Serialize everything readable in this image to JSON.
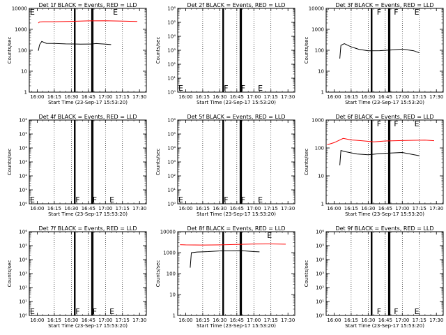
{
  "chart_data": [
    {
      "type": "line",
      "title": "Det 1f BLACK = Events, RED = LLD",
      "xlabel": "Start Time (23-Sep-17 15:53:20)",
      "ylabel": "Counts/sec",
      "yscale": "log",
      "ylim": [
        1,
        10000
      ],
      "ytick_labels": [
        "1",
        "10",
        "100",
        "1000",
        "10000"
      ],
      "xtick_labels": [
        "16:00",
        "16:15",
        "16:30",
        "16:45",
        "17:00",
        "17:15",
        "17:30"
      ],
      "flags": [
        {
          "label": "E",
          "at": "left-top"
        },
        {
          "label": "E",
          "at": "17:06"
        }
      ],
      "series": [
        {
          "name": "LLD",
          "color": "#ff0000",
          "x": [
            "16:01",
            "16:02",
            "16:05",
            "16:15",
            "16:30",
            "16:45",
            "17:00",
            "17:15",
            "17:28"
          ],
          "y": [
            2000,
            2350,
            2450,
            2400,
            2380,
            2400,
            2420,
            2400,
            2400
          ]
        },
        {
          "name": "Events",
          "color": "#000000",
          "x": [
            "16:01",
            "16:02",
            "16:04",
            "16:08",
            "16:15",
            "16:25",
            "16:32",
            "16:38",
            "16:47",
            "16:52",
            "17:00",
            "17:05"
          ],
          "y": [
            100,
            190,
            270,
            210,
            200,
            190,
            195,
            200,
            210,
            220,
            200,
            180
          ]
        }
      ]
    },
    {
      "type": "line",
      "title": "Det 2f BLACK = Events, RED = LLD",
      "xlabel": "Start Time (23-Sep-17 15:53:20)",
      "ylabel": "Counts/sec",
      "yscale": "log",
      "ylim": [
        1,
        1000000
      ],
      "ytick_labels": [
        "10⁰",
        "10¹",
        "10²",
        "10³",
        "10⁴",
        "10⁵",
        "10⁶"
      ],
      "xtick_labels": [
        "16:00",
        "16:15",
        "16:30",
        "16:45",
        "17:00",
        "17:15",
        "17:30"
      ],
      "flags": [
        {
          "label": "E",
          "at": "left-bottom"
        },
        {
          "label": "F",
          "at": "16:33"
        },
        {
          "label": "F",
          "at": "16:48"
        },
        {
          "label": "E",
          "at": "17:03"
        }
      ],
      "series": []
    },
    {
      "type": "line",
      "title": "Det 3f BLACK = Events, RED = LLD",
      "xlabel": "Start Time (23-Sep-17 15:53:20)",
      "ylabel": "Counts/sec",
      "yscale": "log",
      "ylim": [
        1,
        10000
      ],
      "ytick_labels": [
        "1",
        "10",
        "100",
        "1000",
        "10000"
      ],
      "xtick_labels": [
        "16:00",
        "16:15",
        "16:30",
        "16:45",
        "17:00",
        "17:15",
        "17:30"
      ],
      "flags": [
        {
          "label": "F",
          "at": "16:37"
        },
        {
          "label": "F",
          "at": "16:52"
        },
        {
          "label": "E",
          "at": "17:10"
        }
      ],
      "series": [
        {
          "name": "Events",
          "color": "#000000",
          "x": [
            "16:05",
            "16:06",
            "16:09",
            "16:15",
            "16:22",
            "16:30",
            "16:40",
            "16:50",
            "17:00",
            "17:10",
            "17:15"
          ],
          "y": [
            40,
            180,
            220,
            150,
            110,
            90,
            90,
            100,
            115,
            100,
            80
          ]
        }
      ]
    },
    {
      "type": "line",
      "title": "Det 4f BLACK = Events, RED = LLD",
      "xlabel": "Start Time (23-Sep-17 15:53:20)",
      "ylabel": "Counts/sec",
      "yscale": "log",
      "ylim": [
        1,
        1000000
      ],
      "ytick_labels": [
        "10⁰",
        "10¹",
        "10²",
        "10³",
        "10⁴",
        "10⁵",
        "10⁶"
      ],
      "xtick_labels": [
        "16:00",
        "16:15",
        "16:30",
        "16:45",
        "17:00",
        "17:15",
        "17:30"
      ],
      "flags": [
        {
          "label": "E",
          "at": "left-bottom"
        },
        {
          "label": "F",
          "at": "16:33"
        },
        {
          "label": "F",
          "at": "16:48"
        },
        {
          "label": "E",
          "at": "17:03"
        }
      ],
      "series": []
    },
    {
      "type": "line",
      "title": "Det 5f BLACK = Events, RED = LLD",
      "xlabel": "Start Time (23-Sep-17 15:53:20)",
      "ylabel": "Counts/sec",
      "yscale": "log",
      "ylim": [
        1,
        1000000
      ],
      "ytick_labels": [
        "10⁰",
        "10¹",
        "10²",
        "10³",
        "10⁴",
        "10⁵",
        "10⁶"
      ],
      "xtick_labels": [
        "16:00",
        "16:15",
        "16:30",
        "16:45",
        "17:00",
        "17:15",
        "17:30"
      ],
      "flags": [
        {
          "label": "E",
          "at": "left-bottom"
        },
        {
          "label": "F",
          "at": "16:33"
        },
        {
          "label": "F",
          "at": "16:48"
        },
        {
          "label": "E",
          "at": "17:03"
        }
      ],
      "series": []
    },
    {
      "type": "line",
      "title": "Det 6f BLACK = Events, RED = LLD",
      "xlabel": "Start Time (23-Sep-17 15:53:20)",
      "ylabel": "Counts/sec",
      "yscale": "log",
      "ylim": [
        1,
        1000
      ],
      "ytick_labels": [
        "1",
        "10",
        "100",
        "1000"
      ],
      "xtick_labels": [
        "16:00",
        "16:15",
        "16:30",
        "16:45",
        "17:00",
        "17:15",
        "17:30"
      ],
      "flags": [
        {
          "label": "F",
          "at": "16:37"
        },
        {
          "label": "F",
          "at": "16:52"
        },
        {
          "label": "E",
          "at": "17:10"
        }
      ],
      "series": [
        {
          "name": "LLD",
          "color": "#ff0000",
          "x": [
            "15:54",
            "16:00",
            "16:08",
            "16:15",
            "16:25",
            "16:35",
            "16:45",
            "17:00",
            "17:10",
            "17:20",
            "17:28"
          ],
          "y": [
            130,
            160,
            230,
            200,
            180,
            160,
            170,
            180,
            190,
            200,
            190
          ]
        },
        {
          "name": "Events",
          "color": "#000000",
          "x": [
            "16:05",
            "16:06",
            "16:10",
            "16:20",
            "16:30",
            "16:40",
            "16:50",
            "17:00",
            "17:10",
            "17:15"
          ],
          "y": [
            25,
            85,
            75,
            60,
            55,
            60,
            65,
            70,
            60,
            55
          ]
        }
      ]
    },
    {
      "type": "line",
      "title": "Det 7f BLACK = Events, RED = LLD",
      "xlabel": "Start Time (23-Sep-17 15:53:20)",
      "ylabel": "Counts/sec",
      "yscale": "log",
      "ylim": [
        1,
        1000000
      ],
      "ytick_labels": [
        "10⁰",
        "10¹",
        "10²",
        "10³",
        "10⁴",
        "10⁵",
        "10⁶"
      ],
      "xtick_labels": [
        "16:00",
        "16:15",
        "16:30",
        "16:45",
        "17:00",
        "17:15",
        "17:30"
      ],
      "flags": [
        {
          "label": "E",
          "at": "left-bottom"
        },
        {
          "label": "F",
          "at": "16:33"
        },
        {
          "label": "F",
          "at": "16:48"
        },
        {
          "label": "E",
          "at": "17:03"
        }
      ],
      "series": []
    },
    {
      "type": "line",
      "title": "Det 8f BLACK = Events, RED = LLD",
      "xlabel": "Start Time (23-Sep-17 15:53:20)",
      "ylabel": "Counts/sec",
      "yscale": "log",
      "ylim": [
        1,
        10000
      ],
      "ytick_labels": [
        "1",
        "10",
        "100",
        "1000",
        "10000"
      ],
      "xtick_labels": [
        "16:00",
        "16:15",
        "16:30",
        "16:45",
        "17:00",
        "17:15",
        "17:30"
      ],
      "flags": [
        {
          "label": "E",
          "at": "17:11"
        }
      ],
      "series": [
        {
          "name": "LLD",
          "color": "#ff0000",
          "x": [
            "15:55",
            "16:00",
            "16:15",
            "16:30",
            "16:45",
            "17:00",
            "17:15",
            "17:28"
          ],
          "y": [
            2400,
            2450,
            2450,
            2440,
            2450,
            2460,
            2450,
            2450
          ]
        },
        {
          "name": "Events",
          "color": "#000000",
          "x": [
            "16:04",
            "16:05",
            "16:10",
            "16:20",
            "16:30",
            "16:40",
            "16:50",
            "17:00",
            "17:05"
          ],
          "y": [
            200,
            1050,
            1100,
            1100,
            1150,
            1150,
            1200,
            1150,
            1150
          ]
        }
      ]
    },
    {
      "type": "line",
      "title": "Det 9f BLACK = Events, RED = LLD",
      "xlabel": "Start Time (23-Sep-17 15:53:20)",
      "ylabel": "Counts/sec",
      "yscale": "log",
      "ylim": [
        1,
        1000000
      ],
      "ytick_labels": [
        "10⁰",
        "10¹",
        "10²",
        "10³",
        "10⁴",
        "10⁵",
        "10⁶"
      ],
      "xtick_labels": [
        "16:00",
        "16:15",
        "16:30",
        "16:45",
        "17:00",
        "17:15",
        "17:30"
      ],
      "flags": [
        {
          "label": "F",
          "at": "16:37"
        },
        {
          "label": "F",
          "at": "16:52"
        },
        {
          "label": "E",
          "at": "17:10"
        }
      ],
      "series": []
    }
  ]
}
